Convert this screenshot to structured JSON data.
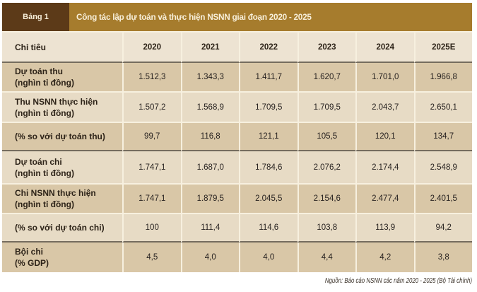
{
  "header": {
    "badge": "Bảng 1",
    "title": "Công tác lập dự toán và thực hiện NSNN giai đoạn 2020 - 2025"
  },
  "table": {
    "header": {
      "label": "Chỉ tiêu",
      "years": [
        "2020",
        "2021",
        "2022",
        "2023",
        "2024",
        "2025E"
      ]
    },
    "rows": [
      {
        "label1": "Dự toán thu",
        "label2": "(nghìn tỉ đồng)",
        "values": [
          "1.512,3",
          "1.343,3",
          "1.411,7",
          "1.620,7",
          "1.701,0",
          "1.966,8"
        ]
      },
      {
        "label1": "Thu NSNN thực hiện",
        "label2": "(nghìn tỉ đồng)",
        "values": [
          "1.507,2",
          "1.568,9",
          "1.709,5",
          "1.709,5",
          "2.043,7",
          "2.650,1"
        ]
      },
      {
        "label1": "(% so với dự toán thu)",
        "label2": "",
        "values": [
          "99,7",
          "116,8",
          "121,1",
          "105,5",
          "120,1",
          "134,7"
        ]
      },
      {
        "label1": "Dự toán chi",
        "label2": "(nghìn tỉ đồng)",
        "values": [
          "1.747,1",
          "1.687,0",
          "1.784,6",
          "2.076,2",
          "2.174,4",
          "2.548,9"
        ]
      },
      {
        "label1": "Chi NSNN thực hiện",
        "label2": "(nghìn tỉ đồng)",
        "values": [
          "1.747,1",
          "1.879,5",
          "2.045,5",
          "2.154,6",
          "2.477,4",
          "2.401,5"
        ]
      },
      {
        "label1": "(% so với dự toán chi)",
        "label2": "",
        "values": [
          "100",
          "111,4",
          "114,6",
          "103,8",
          "113,9",
          "94,2"
        ]
      },
      {
        "label1": "Bội chi",
        "label2": "(% GDP)",
        "values": [
          "4,5",
          "4,0",
          "4,0",
          "4,4",
          "4,2",
          "3,8"
        ]
      }
    ]
  },
  "footer": {
    "source": "Nguồn: Báo cáo NSNN các năm 2020 - 2025 (Bộ Tài chính)"
  },
  "chart_data": {
    "type": "table",
    "title": "Công tác lập dự toán và thực hiện NSNN giai đoạn 2020 - 2025",
    "categories": [
      "2020",
      "2021",
      "2022",
      "2023",
      "2024",
      "2025E"
    ],
    "series": [
      {
        "name": "Dự toán thu (nghìn tỉ đồng)",
        "values": [
          1512.3,
          1343.3,
          1411.7,
          1620.7,
          1701.0,
          1966.8
        ]
      },
      {
        "name": "Thu NSNN thực hiện (nghìn tỉ đồng)",
        "values": [
          1507.2,
          1568.9,
          1709.5,
          1709.5,
          2043.7,
          2650.1
        ]
      },
      {
        "name": "(% so với dự toán thu)",
        "values": [
          99.7,
          116.8,
          121.1,
          105.5,
          120.1,
          134.7
        ]
      },
      {
        "name": "Dự toán chi (nghìn tỉ đồng)",
        "values": [
          1747.1,
          1687.0,
          1784.6,
          2076.2,
          2174.4,
          2548.9
        ]
      },
      {
        "name": "Chi NSNN thực hiện (nghìn tỉ đồng)",
        "values": [
          1747.1,
          1879.5,
          2045.5,
          2154.6,
          2477.4,
          2401.5
        ]
      },
      {
        "name": "(% so với dự toán chi)",
        "values": [
          100,
          111.4,
          114.6,
          103.8,
          113.9,
          94.2
        ]
      },
      {
        "name": "Bội chi (% GDP)",
        "values": [
          4.5,
          4.0,
          4.0,
          4.4,
          4.2,
          3.8
        ]
      }
    ]
  },
  "colors": {
    "golden": "#a67c2d",
    "badge": "#5c3a18",
    "cream": "#f7f0df",
    "dark-line": "#756c5e",
    "beige-header": "#ede3d2",
    "row-light": "#e7dbc5",
    "row-tan": "#d9c7a7",
    "title-text": "#f8efd9",
    "label-text": "#2d2318",
    "number-text": "#272220",
    "note-text": "#3a3128",
    "page-bg": "#ffffff"
  }
}
